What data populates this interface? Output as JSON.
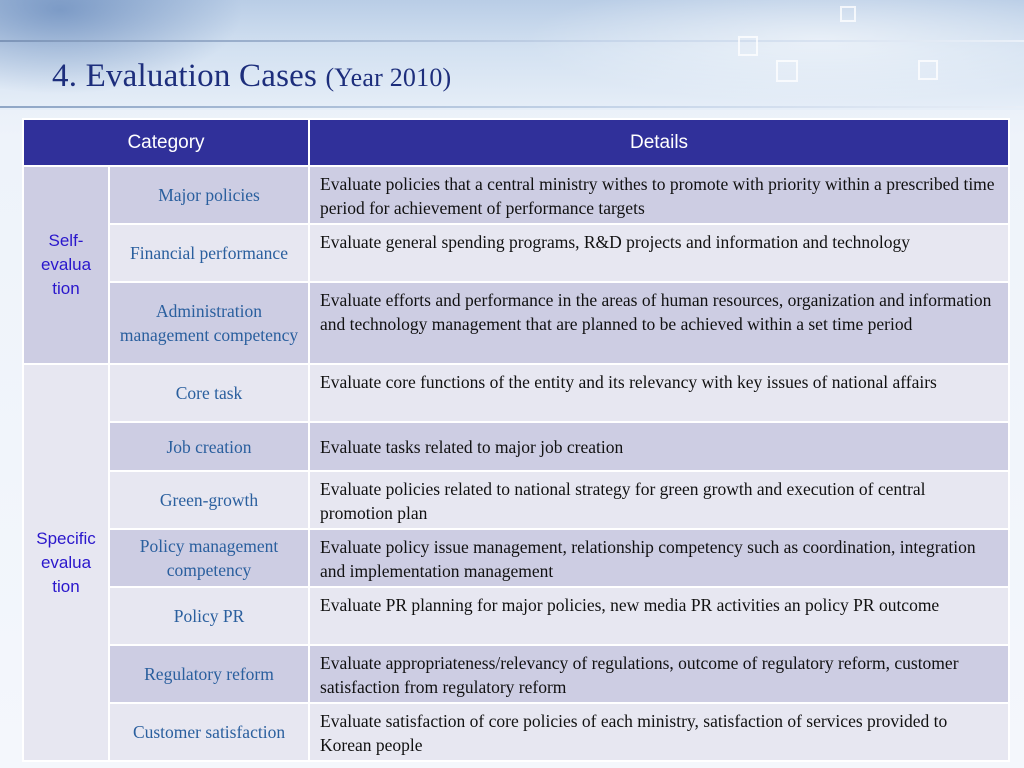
{
  "slide": {
    "title_main": "4. Evaluation Cases ",
    "title_sub": "(Year 2010)"
  },
  "table": {
    "header": {
      "category": "Category",
      "details": "Details"
    },
    "groups": [
      {
        "label": "Self-\nevalua\ntion",
        "rows": [
          {
            "category": "Major policies",
            "details": "Evaluate policies that a central ministry withes to promote with priority within a prescribed time period for achievement of performance targets"
          },
          {
            "category": "Financial performance",
            "details": "Evaluate general spending programs, R&D projects and information and technology"
          },
          {
            "category": "Administration management competency",
            "details": "Evaluate efforts and performance in the areas of human resources, organization and information and technology management that are planned to be achieved within a set time period"
          }
        ]
      },
      {
        "label": "Specific\nevalua\ntion",
        "rows": [
          {
            "category": "Core task",
            "details": "Evaluate core functions of the entity and its relevancy with key issues of national affairs"
          },
          {
            "category": "Job creation",
            "details": "Evaluate tasks related to major job creation"
          },
          {
            "category": "Green-growth",
            "details": "Evaluate policies related to national strategy for green growth and execution of central promotion plan"
          },
          {
            "category": "Policy management competency",
            "details": "Evaluate policy issue management, relationship competency such as coordination, integration and implementation management"
          },
          {
            "category": "Policy PR",
            "details": "Evaluate PR planning for major policies, new media PR activities an policy PR outcome"
          },
          {
            "category": "Regulatory reform",
            "details": "Evaluate appropriateness/relevancy of regulations, outcome of regulatory reform, customer satisfaction from regulatory reform"
          },
          {
            "category": "Customer satisfaction",
            "details": "Evaluate satisfaction of core policies of each ministry, satisfaction of services provided to Korean people"
          }
        ]
      }
    ]
  }
}
